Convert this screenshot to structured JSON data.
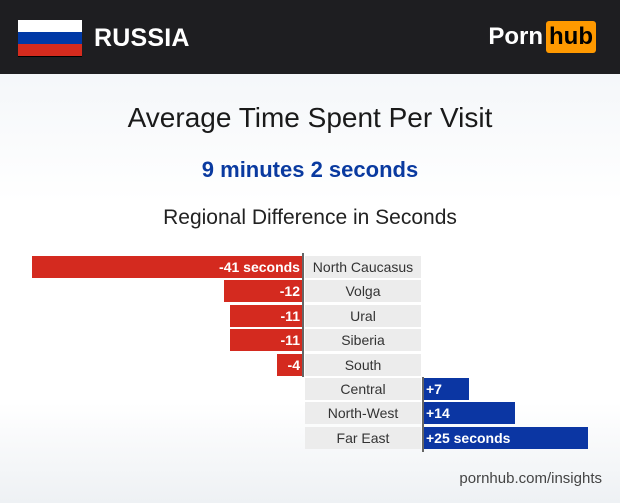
{
  "header": {
    "country": "RUSSIA",
    "logo_left": "Porn",
    "logo_right": "hub",
    "flag_colors": [
      "#ffffff",
      "#0039a6",
      "#d52b1e"
    ]
  },
  "title": "Average Time Spent Per Visit",
  "subtitle": "9 minutes 2 seconds",
  "footer": "pornhub.com/insights",
  "chart_data": {
    "type": "bar",
    "orientation": "horizontal-diverging",
    "title": "Regional Difference in Seconds",
    "categories": [
      "North Caucasus",
      "Volga",
      "Ural",
      "Siberia",
      "South",
      "Central",
      "North-West",
      "Far East"
    ],
    "values": [
      -41,
      -12,
      -11,
      -11,
      -4,
      7,
      14,
      25
    ],
    "data_labels": [
      "-41 seconds",
      "-12",
      "-11",
      "-11",
      "-4",
      "+7",
      "+14",
      "+25 seconds"
    ],
    "colors": {
      "negative": "#d42a1f",
      "positive": "#0b36a3"
    }
  }
}
